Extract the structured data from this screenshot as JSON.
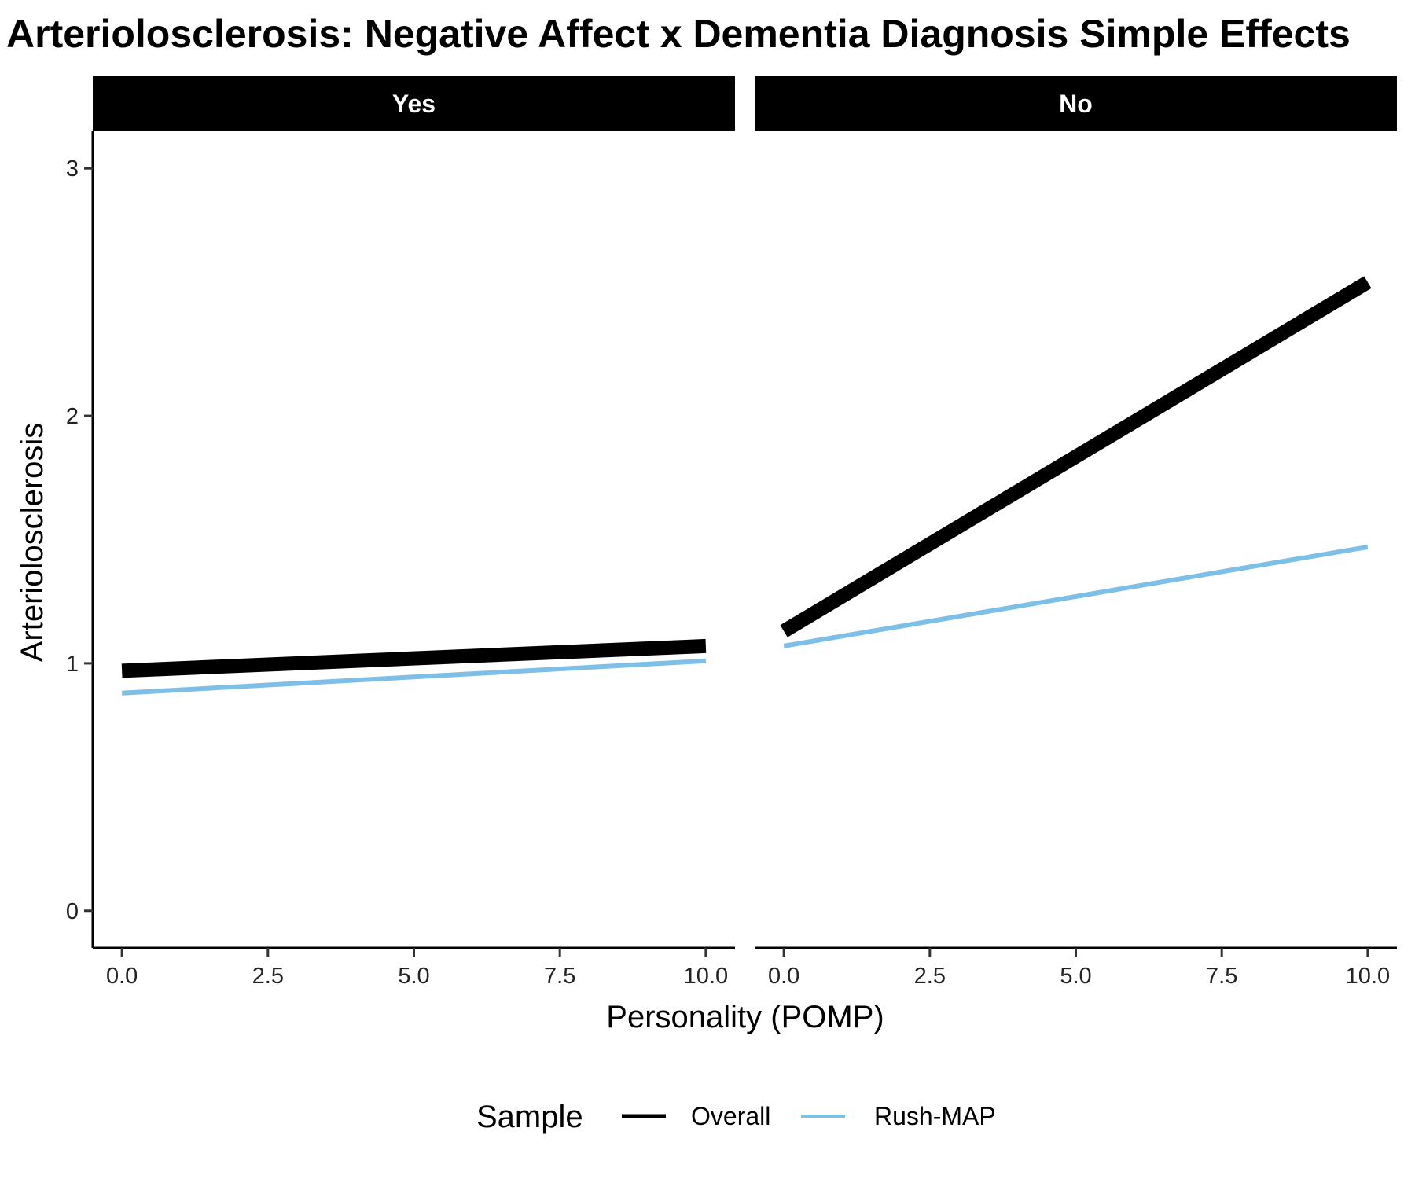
{
  "chart_data": {
    "type": "line",
    "title": "Arteriolosclerosis: Negative Affect x Dementia Diagnosis Simple Effects",
    "xlabel": "Personality (POMP)",
    "ylabel": "Arteriolosclerosis",
    "xlim": [
      -0.5,
      10.5
    ],
    "ylim": [
      -0.15,
      3.15
    ],
    "x_ticks": [
      "0.0",
      "2.5",
      "5.0",
      "7.5",
      "10.0"
    ],
    "y_ticks": [
      "0",
      "1",
      "2",
      "3"
    ],
    "grid": false,
    "legend": {
      "title": "Sample",
      "position": "bottom",
      "entries": [
        "Overall",
        "Rush-MAP"
      ]
    },
    "colors": {
      "Overall": "#000000",
      "Rush-MAP": "#7dbfe6",
      "strip_background": "#000000",
      "strip_text": "#ffffff"
    },
    "panels": [
      {
        "label": "Yes",
        "series": [
          {
            "name": "Overall",
            "x": [
              0,
              10
            ],
            "y": [
              0.97,
              1.07
            ]
          },
          {
            "name": "Rush-MAP",
            "x": [
              0,
              10
            ],
            "y": [
              0.88,
              1.01
            ]
          }
        ]
      },
      {
        "label": "No",
        "series": [
          {
            "name": "Overall",
            "x": [
              0,
              10
            ],
            "y": [
              1.13,
              2.54
            ]
          },
          {
            "name": "Rush-MAP",
            "x": [
              0,
              10
            ],
            "y": [
              1.07,
              1.47
            ]
          }
        ]
      }
    ]
  }
}
